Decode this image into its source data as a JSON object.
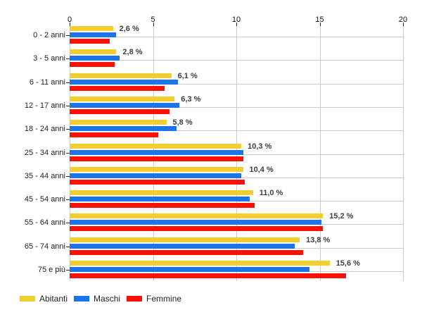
{
  "chart_data": {
    "type": "bar",
    "orientation": "horizontal",
    "title": "",
    "categories": [
      "0 - 2 anni",
      "3 - 5 anni",
      "6 - 11 anni",
      "12 - 17 anni",
      "18 - 24 anni",
      "25 - 34 anni",
      "35 - 44 anni",
      "45 - 54 anni",
      "55 - 64 anni",
      "65 - 74 anni",
      "75 e più"
    ],
    "series": [
      {
        "name": "Abitanti",
        "color": "#f2ce30",
        "values": [
          2.6,
          2.8,
          6.1,
          6.3,
          5.8,
          10.3,
          10.4,
          11.0,
          15.2,
          13.8,
          15.6
        ]
      },
      {
        "name": "Maschi",
        "color": "#1b74e8",
        "values": [
          2.8,
          3.0,
          6.5,
          6.6,
          6.4,
          10.4,
          10.3,
          10.8,
          15.1,
          13.5,
          14.4
        ]
      },
      {
        "name": "Femmine",
        "color": "#fa1005",
        "values": [
          2.4,
          2.7,
          5.7,
          6.0,
          5.3,
          10.4,
          10.5,
          11.1,
          15.2,
          14.0,
          16.6
        ]
      }
    ],
    "value_labels": [
      "2,6 %",
      "2,8 %",
      "6,1 %",
      "6,3 %",
      "5,8 %",
      "10,3 %",
      "10,4 %",
      "11,0 %",
      "15,2 %",
      "13,8 %",
      "15,6 %"
    ],
    "labeled_series": "Abitanti",
    "x_axis": {
      "position": "top",
      "min": 0,
      "max": 20,
      "ticks": [
        0,
        5,
        10,
        15,
        20
      ]
    },
    "grid": true,
    "legend": {
      "position": "bottom-left",
      "entries": [
        "Abitanti",
        "Maschi",
        "Femmine"
      ]
    },
    "colors": {
      "grid": "#cccccc",
      "axis_text": "#111111",
      "category_text": "#222222",
      "value_label_text": "#3d3d47",
      "background": "#ffffff"
    }
  }
}
